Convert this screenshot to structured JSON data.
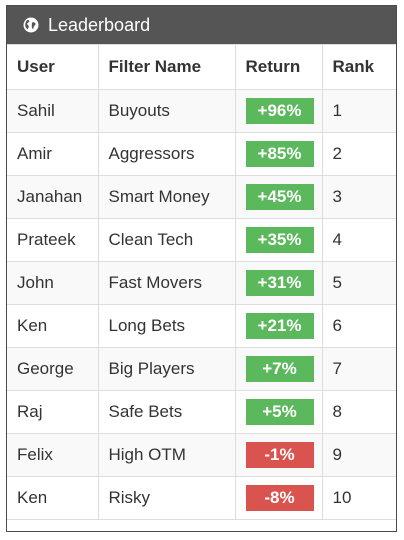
{
  "header": {
    "title": "Leaderboard",
    "icon": "globe-icon"
  },
  "columns": [
    "User",
    "Filter Name",
    "Return",
    "Rank"
  ],
  "rows": [
    {
      "user": "Sahil",
      "filter": "Buyouts",
      "return": "+96%",
      "rank": "1",
      "status": "positive"
    },
    {
      "user": "Amir",
      "filter": "Aggressors",
      "return": "+85%",
      "rank": "2",
      "status": "positive"
    },
    {
      "user": "Janahan",
      "filter": "Smart Money",
      "return": "+45%",
      "rank": "3",
      "status": "positive"
    },
    {
      "user": "Prateek",
      "filter": "Clean Tech",
      "return": "+35%",
      "rank": "4",
      "status": "positive"
    },
    {
      "user": "John",
      "filter": "Fast Movers",
      "return": "+31%",
      "rank": "5",
      "status": "positive"
    },
    {
      "user": "Ken",
      "filter": "Long Bets",
      "return": "+21%",
      "rank": "6",
      "status": "positive"
    },
    {
      "user": "George",
      "filter": "Big Players",
      "return": "+7%",
      "rank": "7",
      "status": "positive"
    },
    {
      "user": "Raj",
      "filter": "Safe Bets",
      "return": "+5%",
      "rank": "8",
      "status": "positive"
    },
    {
      "user": "Felix",
      "filter": "High OTM",
      "return": "-1%",
      "rank": "9",
      "status": "negative"
    },
    {
      "user": "Ken",
      "filter": "Risky",
      "return": "-8%",
      "rank": "10",
      "status": "negative"
    }
  ],
  "colors": {
    "header_bg": "#555555",
    "positive": "#5cb85c",
    "negative": "#d9534f"
  }
}
